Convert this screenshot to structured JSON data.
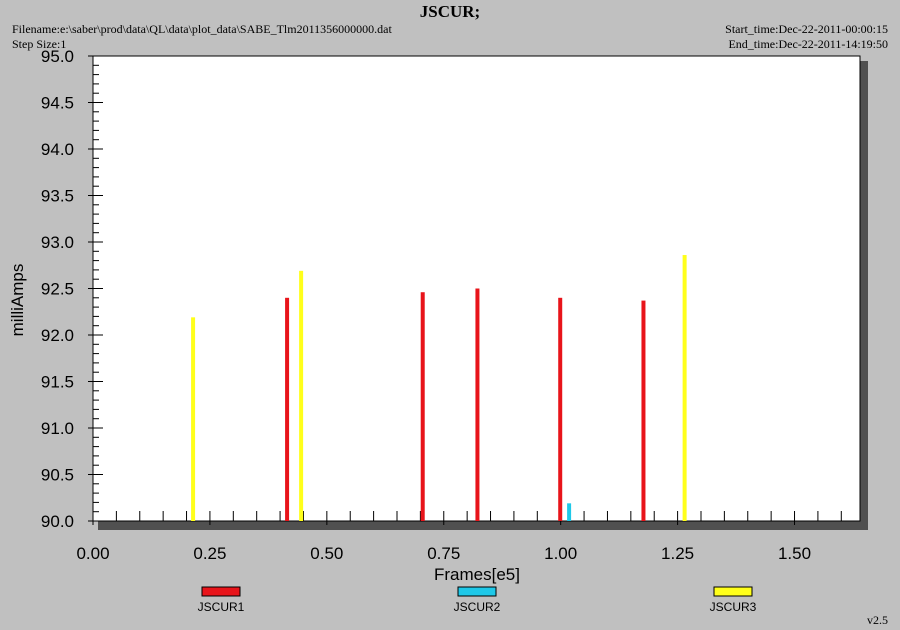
{
  "header": {
    "title": "JSCUR;",
    "filename": "Filename:e:\\saber\\prod\\data\\QL\\data\\plot_data\\SABE_Tlm2011356000000.dat",
    "step_size": "Step Size:1",
    "start_time": "Start_time:Dec-22-2011-00:00:15",
    "end_time": "End_time:Dec-22-2011-14:19:50"
  },
  "version": "v2.5",
  "colors": {
    "background": "#c0c0c0",
    "plot_area": "#ffffff",
    "JSCUR1": "#e8141a",
    "JSCUR2": "#1ec8e8",
    "JSCUR3": "#ffff1a"
  },
  "chart_data": {
    "type": "bar",
    "title": "JSCUR;",
    "xlabel": "Frames[e5]",
    "ylabel": "milliAmps",
    "xlim": [
      0,
      1.64
    ],
    "ylim": [
      90.0,
      95.0
    ],
    "xticks": [
      "0.00",
      "0.25",
      "0.50",
      "0.75",
      "1.00",
      "1.25",
      "1.50"
    ],
    "yticks": [
      "90.0",
      "90.5",
      "91.0",
      "91.5",
      "92.0",
      "92.5",
      "93.0",
      "93.5",
      "94.0",
      "94.5",
      "95.0"
    ],
    "grid": false,
    "legend_position": "bottom",
    "series": [
      {
        "name": "JSCUR1",
        "points": [
          {
            "x": 0.415,
            "y": 92.4
          },
          {
            "x": 0.705,
            "y": 92.46
          },
          {
            "x": 0.822,
            "y": 92.5
          },
          {
            "x": 0.999,
            "y": 92.4
          },
          {
            "x": 1.177,
            "y": 92.37
          }
        ]
      },
      {
        "name": "JSCUR2",
        "points": [
          {
            "x": 1.018,
            "y": 90.19
          }
        ]
      },
      {
        "name": "JSCUR3",
        "points": [
          {
            "x": 0.214,
            "y": 92.19
          },
          {
            "x": 0.445,
            "y": 92.69
          },
          {
            "x": 1.265,
            "y": 92.86
          }
        ]
      }
    ]
  }
}
